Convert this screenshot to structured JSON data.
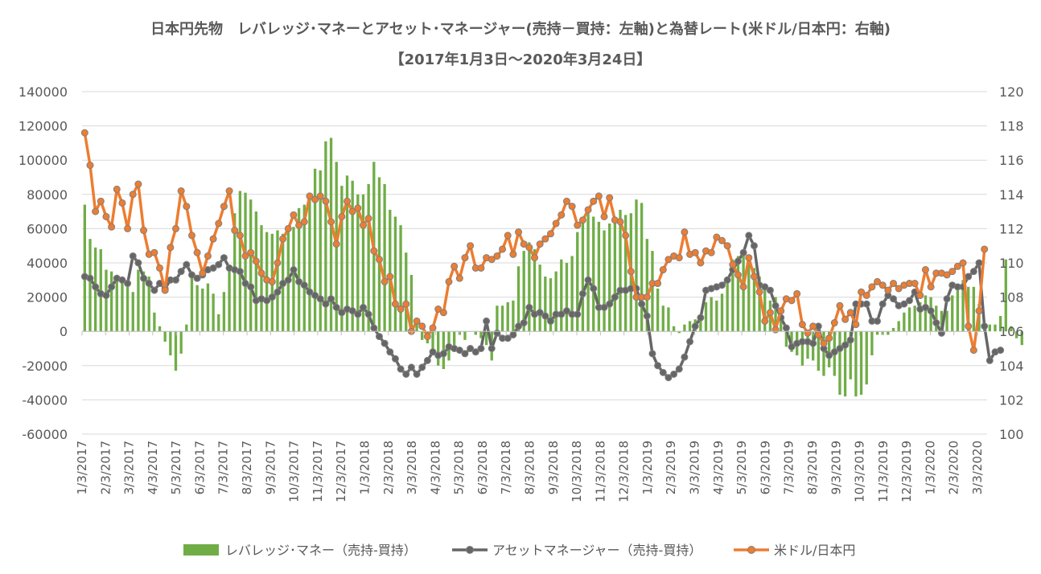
{
  "chart_data": {
    "type": "bar-line-combo",
    "title": "日本円先物　レバレッジ･マネーとアセット･マネージャー(売持－買持：左軸)と為替レート(米ドル/日本円：右軸)",
    "subtitle": "【2017年1月3日～2020年3月24日】",
    "x_tick_labels": [
      "1/3/2017",
      "2/3/2017",
      "3/3/2017",
      "4/3/2017",
      "5/3/2017",
      "6/3/2017",
      "7/3/2017",
      "8/3/2017",
      "9/3/2017",
      "10/3/2017",
      "11/3/2017",
      "12/3/2017",
      "1/3/2018",
      "2/3/2018",
      "3/3/2018",
      "4/3/2018",
      "5/3/2018",
      "6/3/2018",
      "7/3/2018",
      "8/3/2018",
      "9/3/2018",
      "10/3/2018",
      "11/3/2018",
      "12/3/2018",
      "1/3/2019",
      "2/3/2019",
      "3/3/2019",
      "4/3/2019",
      "5/3/2019",
      "6/3/2019",
      "7/3/2019",
      "8/3/2019",
      "9/3/2019",
      "10/3/2019",
      "11/3/2019",
      "12/3/2019",
      "1/3/2020",
      "2/3/2020",
      "3/3/2020"
    ],
    "y_left_ticks": [
      "140000",
      "120000",
      "100000",
      "80000",
      "60000",
      "40000",
      "20000",
      "0",
      "-20000",
      "-40000",
      "-60000"
    ],
    "y_right_ticks": [
      "120",
      "118",
      "116",
      "114",
      "112",
      "110",
      "108",
      "106",
      "104",
      "102",
      "100"
    ],
    "y_left_range": [
      -60000,
      140000
    ],
    "y_right_range": [
      100,
      120
    ],
    "legend_position": "bottom",
    "legend": {
      "leveraged": "レバレッジ･マネー（売持-買持）",
      "asset": "アセットマネージャー（売持-買持）",
      "fx": "米ドル/日本円"
    },
    "colors": {
      "leveraged": "#70ad47",
      "asset": "#666666",
      "fx": "#ed7d31",
      "grid": "#d9d9d9",
      "text": "#595959"
    },
    "series": [
      {
        "key": "leveraged",
        "axis": "left",
        "chart": "bar",
        "values": [
          74000,
          54000,
          49000,
          48000,
          36000,
          35000,
          31000,
          30000,
          26000,
          23000,
          36000,
          35000,
          32000,
          11000,
          3000,
          -6000,
          -14000,
          -23000,
          -13000,
          4000,
          32000,
          27000,
          25000,
          28000,
          22000,
          10000,
          23000,
          39000,
          69000,
          82000,
          81000,
          77000,
          70000,
          62000,
          58000,
          57000,
          59000,
          57000,
          60000,
          61000,
          72000,
          74000,
          80000,
          95000,
          94000,
          111000,
          113000,
          99000,
          85000,
          91000,
          88000,
          80000,
          80000,
          86000,
          99000,
          90000,
          86000,
          71000,
          67000,
          62000,
          46000,
          33000,
          5000,
          -5000,
          -7000,
          -14000,
          -20000,
          -22000,
          -17000,
          -8000,
          -2000,
          -5000,
          0,
          -2000,
          -4000,
          -8000,
          -17000,
          15000,
          15000,
          17000,
          18000,
          38000,
          47000,
          52000,
          48000,
          39000,
          32000,
          31000,
          35000,
          42000,
          40000,
          44000,
          58000,
          64000,
          69000,
          67000,
          64000,
          59000,
          63000,
          65000,
          71000,
          68000,
          69000,
          77000,
          75000,
          54000,
          47000,
          25000,
          15000,
          14000,
          3000,
          -1000,
          4000,
          6000,
          7000,
          9000,
          17000,
          20000,
          18000,
          22000,
          32000,
          42000,
          44000,
          45000,
          44000,
          37000,
          32000,
          28000,
          18000,
          20000,
          10000,
          -9000,
          -12000,
          -14000,
          -20000,
          -16000,
          -17000,
          -23000,
          -26000,
          -21000,
          -26000,
          -37000,
          -38000,
          -28000,
          -38000,
          -37000,
          -31000,
          -14000,
          -2000,
          -2000,
          -2000,
          2000,
          6000,
          11000,
          14000,
          15000,
          17000,
          21000,
          20000,
          15000,
          12000,
          12000,
          21000,
          24000,
          30000,
          26000,
          26000,
          16000,
          3000,
          4000,
          4000,
          9000,
          42000,
          3000,
          -4000,
          -8000
        ]
      },
      {
        "key": "asset",
        "axis": "left",
        "chart": "line",
        "values": [
          32000,
          31000,
          26000,
          22000,
          21000,
          26000,
          31000,
          30000,
          28000,
          44000,
          40000,
          31000,
          28000,
          24000,
          28000,
          25000,
          30000,
          30000,
          35000,
          39000,
          33000,
          31000,
          33000,
          36000,
          37000,
          39000,
          43000,
          37000,
          36000,
          35000,
          28000,
          26000,
          18000,
          19000,
          18000,
          20000,
          23000,
          28000,
          30000,
          36000,
          29000,
          27000,
          23000,
          21000,
          19000,
          16000,
          19000,
          14000,
          11000,
          13000,
          12000,
          10000,
          14000,
          10000,
          2000,
          -3000,
          -7000,
          -12000,
          -16000,
          -22000,
          -25000,
          -21000,
          -25000,
          -21000,
          -17000,
          -12000,
          -14000,
          -13000,
          -9000,
          -10000,
          -11000,
          -13000,
          -10000,
          -12000,
          -10000,
          6000,
          -10000,
          -1000,
          -4000,
          -4000,
          -2000,
          3000,
          5000,
          14000,
          10000,
          11000,
          9000,
          6000,
          10000,
          10000,
          12000,
          10000,
          10000,
          22000,
          30000,
          25000,
          14000,
          14000,
          16000,
          20000,
          24000,
          24000,
          25000,
          25000,
          16000,
          9000,
          -13000,
          -20000,
          -24000,
          -27000,
          -25000,
          -22000,
          -15000,
          -6000,
          3000,
          8000,
          24000,
          25000,
          26000,
          27000,
          30000,
          36000,
          41000,
          46000,
          56000,
          50000,
          27000,
          26000,
          24000,
          15000,
          8000,
          2000,
          -9000,
          -7000,
          -6000,
          -6000,
          -7000,
          3000,
          -10000,
          -14000,
          -12000,
          -10000,
          -8000,
          -5000,
          16000,
          16000,
          16000,
          6000,
          6000,
          16000,
          21000,
          19000,
          15000,
          16000,
          18000,
          23000,
          13000,
          14000,
          12000,
          5000,
          -1000,
          19000,
          27000,
          26000,
          26000,
          32000,
          35000,
          40000,
          3000,
          -17000,
          -12000,
          -11000
        ]
      },
      {
        "key": "fx",
        "axis": "right",
        "chart": "line",
        "values": [
          117.6,
          115.7,
          113.0,
          113.6,
          112.7,
          112.1,
          114.3,
          113.5,
          112.0,
          114.0,
          114.6,
          111.9,
          110.5,
          110.6,
          109.7,
          108.4,
          110.9,
          112.0,
          114.2,
          113.3,
          111.6,
          110.6,
          109.4,
          110.4,
          111.4,
          112.3,
          113.3,
          114.2,
          111.9,
          111.6,
          110.4,
          110.6,
          110.1,
          109.4,
          109.0,
          108.9,
          110.0,
          111.4,
          112.0,
          112.8,
          112.2,
          112.4,
          113.9,
          113.7,
          113.9,
          113.6,
          112.4,
          111.1,
          112.7,
          113.6,
          113.0,
          113.2,
          112.2,
          112.6,
          110.7,
          110.2,
          108.9,
          109.2,
          107.6,
          107.3,
          107.6,
          106.0,
          106.6,
          106.3,
          105.7,
          106.2,
          107.3,
          107.1,
          108.9,
          109.8,
          109.1,
          110.3,
          111.0,
          109.7,
          109.7,
          110.3,
          110.2,
          110.4,
          110.8,
          111.6,
          110.5,
          111.8,
          111.1,
          110.9,
          110.3,
          111.1,
          111.4,
          111.7,
          112.3,
          112.8,
          113.6,
          113.3,
          112.2,
          112.5,
          113.1,
          113.6,
          113.9,
          112.7,
          113.8,
          112.5,
          112.4,
          111.6,
          109.5,
          108.0,
          108.0,
          108.0,
          108.8,
          108.8,
          109.6,
          110.2,
          110.4,
          110.3,
          111.8,
          110.5,
          110.6,
          110.0,
          110.7,
          110.6,
          111.5,
          111.3,
          111.0,
          109.9,
          109.3,
          108.6,
          110.3,
          109.2,
          108.3,
          106.6,
          107.1,
          106.1,
          107.2,
          107.9,
          107.8,
          108.2,
          106.4,
          105.9,
          106.3,
          105.8,
          105.3,
          105.6,
          106.5,
          107.5,
          106.7,
          107.1,
          106.4,
          108.3,
          108.1,
          108.6,
          108.9,
          108.7,
          108.4,
          108.8,
          108.5,
          108.7,
          108.8,
          108.8,
          108.1,
          109.6,
          108.6,
          109.4,
          109.4,
          109.3,
          109.5,
          109.8,
          110.0,
          106.3,
          104.9,
          107.2,
          110.8
        ]
      }
    ]
  }
}
